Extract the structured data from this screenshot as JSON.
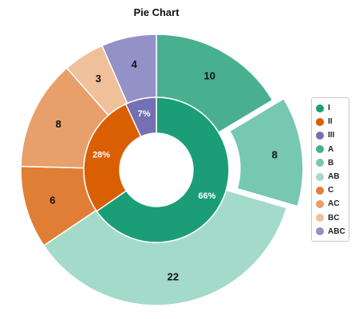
{
  "chart_data": {
    "type": "pie",
    "title": "Pie Chart",
    "inner_ring": [
      {
        "name": "I",
        "value": 66,
        "label": "66%",
        "color": "#1b9e77"
      },
      {
        "name": "II",
        "value": 28,
        "label": "28%",
        "color": "#d95f02"
      },
      {
        "name": "III",
        "value": 7,
        "label": "7%",
        "color": "#7570b3"
      }
    ],
    "outer_ring": [
      {
        "name": "A",
        "value": 10,
        "label": "10",
        "color": "#49b08f"
      },
      {
        "name": "B",
        "value": 8,
        "label": "8",
        "color": "#76c8b0",
        "exploded": true
      },
      {
        "name": "AB",
        "value": 22,
        "label": "22",
        "color": "#a4dac9"
      },
      {
        "name": "C",
        "value": 6,
        "label": "6",
        "color": "#e17e35"
      },
      {
        "name": "AC",
        "value": 8,
        "label": "8",
        "color": "#e89f69"
      },
      {
        "name": "BC",
        "value": 3,
        "label": "3",
        "color": "#f0c09b"
      },
      {
        "name": "ABC",
        "value": 4,
        "label": "4",
        "color": "#9490c8"
      }
    ],
    "legend": {
      "placement": "right",
      "items": [
        {
          "label": "I",
          "color": "#1b9e77"
        },
        {
          "label": "II",
          "color": "#d95f02"
        },
        {
          "label": "III",
          "color": "#7570b3"
        },
        {
          "label": "A",
          "color": "#49b08f"
        },
        {
          "label": "B",
          "color": "#76c8b0"
        },
        {
          "label": "AB",
          "color": "#a4dac9"
        },
        {
          "label": "C",
          "color": "#e17e35"
        },
        {
          "label": "AC",
          "color": "#e89f69"
        },
        {
          "label": "BC",
          "color": "#f0c09b"
        },
        {
          "label": "ABC",
          "color": "#9490c8"
        }
      ]
    }
  }
}
